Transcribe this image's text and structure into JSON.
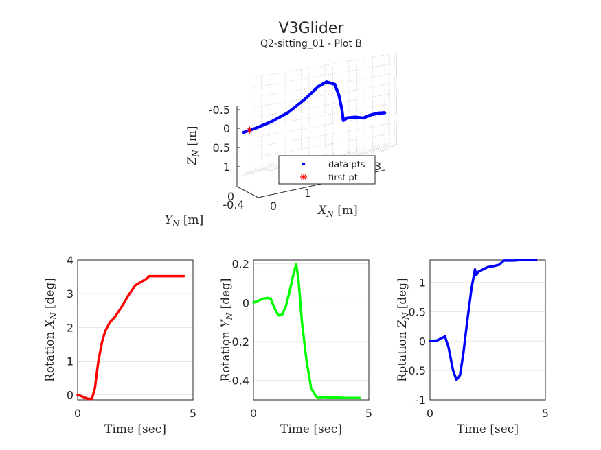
{
  "title": "V3Glider",
  "subtitle": "Q2-sitting_01 - Plot B",
  "chart_data": [
    {
      "id": "traj3d",
      "type": "scatter",
      "xlabel": "X_N [m]",
      "ylabel": "Y_N [m]",
      "zlabel": "Z_N [m]",
      "x_ticks": [
        "1",
        "3"
      ],
      "y_ticks": [
        "-0.4",
        "0"
      ],
      "z_ticks": [
        "-0.5",
        "0",
        "0.5",
        "1"
      ],
      "z_reversed": true,
      "grid": true,
      "legend": {
        "location": "inside-bottom-right",
        "entries": [
          {
            "label": "data pts",
            "marker": "dot",
            "color": "#0000ff"
          },
          {
            "label": "first pt",
            "marker": "asterisk",
            "color": "#ff0000"
          }
        ]
      },
      "series": [
        {
          "name": "data pts",
          "color": "#0000ff",
          "points": [
            [
              0.0,
              -0.05,
              0.1
            ],
            [
              0.3,
              -0.05,
              0.05
            ],
            [
              0.7,
              -0.06,
              -0.05
            ],
            [
              1.1,
              -0.07,
              -0.2
            ],
            [
              1.5,
              -0.08,
              -0.45
            ],
            [
              1.85,
              -0.09,
              -0.72
            ],
            [
              2.05,
              -0.1,
              -0.8
            ],
            [
              2.25,
              -0.11,
              -0.7
            ],
            [
              2.35,
              -0.12,
              -0.4
            ],
            [
              2.42,
              -0.12,
              -0.05
            ],
            [
              2.46,
              -0.12,
              0.25
            ],
            [
              2.55,
              -0.13,
              0.2
            ],
            [
              2.75,
              -0.14,
              0.22
            ],
            [
              2.95,
              -0.15,
              0.28
            ],
            [
              3.1,
              -0.17,
              0.24
            ],
            [
              3.3,
              -0.19,
              0.23
            ],
            [
              3.45,
              -0.2,
              0.25
            ]
          ]
        },
        {
          "name": "first pt",
          "color": "#ff0000",
          "points": [
            [
              0.15,
              -0.05,
              0.07
            ]
          ]
        }
      ]
    },
    {
      "id": "rotX",
      "type": "line",
      "xlabel": "Time [sec]",
      "ylabel": "Rotation X_N [deg]",
      "xlim": [
        0,
        5
      ],
      "ylim": [
        -0.15,
        4
      ],
      "x_ticks": [
        "0",
        "5"
      ],
      "y_ticks": [
        "0",
        "1",
        "2",
        "3",
        "4"
      ],
      "color": "#ff0000",
      "x": [
        0,
        0.2,
        0.45,
        0.62,
        0.75,
        0.9,
        1.05,
        1.2,
        1.4,
        1.6,
        1.9,
        2.2,
        2.5,
        2.75,
        3.0,
        3.1,
        3.5,
        4.0,
        4.6
      ],
      "y": [
        0,
        -0.05,
        -0.12,
        -0.12,
        0.2,
        1.0,
        1.55,
        1.9,
        2.15,
        2.3,
        2.6,
        2.95,
        3.25,
        3.35,
        3.45,
        3.52,
        3.52,
        3.52,
        3.52
      ]
    },
    {
      "id": "rotY",
      "type": "line",
      "xlabel": "Time [sec]",
      "ylabel": "Rotation Y_N [deg]",
      "xlim": [
        0,
        5
      ],
      "ylim": [
        -0.5,
        0.22
      ],
      "x_ticks": [
        "0",
        "5"
      ],
      "y_ticks": [
        "-0.4",
        "-0.2",
        "0",
        "0.2"
      ],
      "color": "#00ff00",
      "x": [
        0,
        0.2,
        0.4,
        0.6,
        0.75,
        0.85,
        1.0,
        1.1,
        1.25,
        1.4,
        1.55,
        1.7,
        1.85,
        1.95,
        2.1,
        2.3,
        2.5,
        2.7,
        2.8,
        3.0,
        3.5,
        4.0,
        4.6
      ],
      "y": [
        0,
        0.01,
        0.02,
        0.025,
        0.02,
        -0.01,
        -0.05,
        -0.065,
        -0.06,
        -0.02,
        0.05,
        0.13,
        0.2,
        0.12,
        -0.1,
        -0.3,
        -0.44,
        -0.48,
        -0.49,
        -0.485,
        -0.488,
        -0.49,
        -0.49
      ]
    },
    {
      "id": "rotZ",
      "type": "line",
      "xlabel": "Time [sec]",
      "ylabel": "Rotation Z_N [deg]",
      "xlim": [
        0,
        5
      ],
      "ylim": [
        -1,
        1.38
      ],
      "x_ticks": [
        "0",
        "5"
      ],
      "y_ticks": [
        "-1",
        "-0.5",
        "0",
        "0.5",
        "1"
      ],
      "color": "#0000ff",
      "x": [
        0,
        0.3,
        0.5,
        0.65,
        0.8,
        1.0,
        1.15,
        1.3,
        1.45,
        1.6,
        1.8,
        1.95,
        2.0,
        2.1,
        2.3,
        2.5,
        2.8,
        3.0,
        3.2,
        3.6,
        4.0,
        4.6
      ],
      "y": [
        0,
        0.01,
        0.05,
        0.08,
        -0.1,
        -0.5,
        -0.66,
        -0.58,
        -0.2,
        0.3,
        0.9,
        1.22,
        1.12,
        1.18,
        1.22,
        1.26,
        1.28,
        1.3,
        1.37,
        1.37,
        1.38,
        1.38
      ]
    }
  ]
}
